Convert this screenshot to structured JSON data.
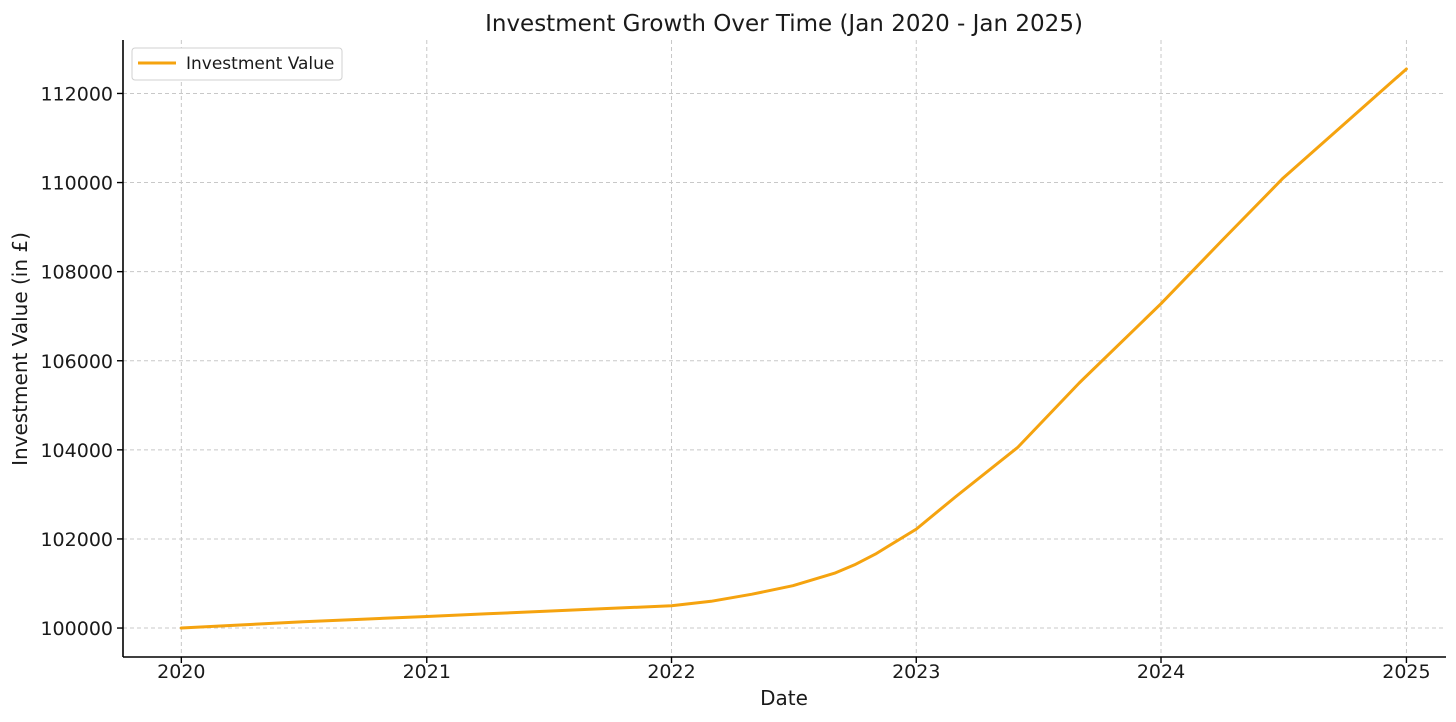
{
  "chart_data": {
    "type": "line",
    "title": "Investment Growth Over Time (Jan 2020 - Jan 2025)",
    "xlabel": "Date",
    "ylabel": "Investment Value (in £)",
    "x_ticks": [
      "2020",
      "2021",
      "2022",
      "2023",
      "2024",
      "2025"
    ],
    "y_ticks": [
      "100000",
      "102000",
      "104000",
      "106000",
      "108000",
      "110000",
      "112000"
    ],
    "xlim": [
      "2019-10-06",
      "2025-03-01"
    ],
    "ylim": [
      99350,
      113200
    ],
    "grid": true,
    "legend_position": "top-left",
    "series": [
      {
        "name": "Investment Value",
        "color": "#f5a30f",
        "x": [
          "2020-01-01",
          "2020-04-01",
          "2020-07-01",
          "2020-10-01",
          "2021-01-01",
          "2021-04-01",
          "2021-07-01",
          "2021-10-01",
          "2022-01-01",
          "2022-03-01",
          "2022-05-01",
          "2022-07-01",
          "2022-09-01",
          "2022-10-01",
          "2022-11-01",
          "2023-01-01",
          "2023-03-01",
          "2023-06-01",
          "2023-09-01",
          "2024-01-01",
          "2024-04-01",
          "2024-07-01",
          "2025-01-01"
        ],
        "values": [
          100000,
          100070,
          100140,
          100200,
          100260,
          100320,
          100380,
          100440,
          100500,
          100600,
          100760,
          100950,
          101230,
          101420,
          101660,
          102220,
          102950,
          104050,
          105500,
          107280,
          108700,
          110100,
          112550
        ]
      }
    ]
  }
}
